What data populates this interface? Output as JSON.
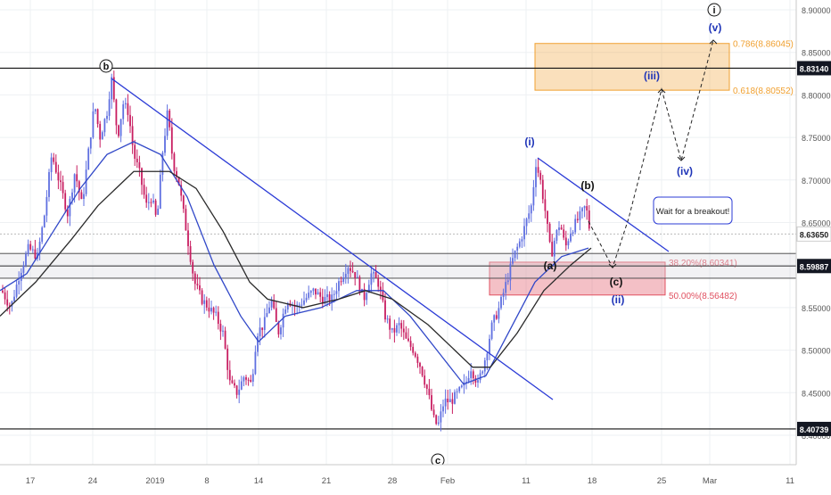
{
  "chart_data": {
    "type": "candlestick",
    "y_axis": {
      "side": "right",
      "ticks": [
        "8.40000",
        "8.45000",
        "8.50000",
        "8.55000",
        "8.60000",
        "8.65000",
        "8.70000",
        "8.75000",
        "8.80000",
        "8.85000",
        "8.90000"
      ]
    },
    "x_axis": {
      "tick_labels": [
        "17",
        "24",
        "2019",
        "8",
        "14",
        "21",
        "28",
        "Feb",
        "11",
        "18",
        "25",
        "Mar",
        "11"
      ]
    },
    "price_levels": [
      {
        "label": "8.83140",
        "value": 8.8314,
        "style": "dark"
      },
      {
        "label": "8.63650",
        "value": 8.6365,
        "style": "gray"
      },
      {
        "label": "8.59887",
        "value": 8.59887,
        "style": "dark"
      },
      {
        "label": "8.40739",
        "value": 8.40739,
        "style": "dark"
      }
    ],
    "fib_zones": [
      {
        "top_label": "0.786(8.86045)",
        "top": 8.86045,
        "bottom_label": "0.618(8.80552)",
        "bottom": 8.80552,
        "color": "#f0a030"
      },
      {
        "top_label": "38.20%(8.60341)",
        "top": 8.60341,
        "bottom_label": "50.00%(8.56482)",
        "bottom": 8.56482,
        "color": "#e05060"
      }
    ],
    "wave_labels": [
      {
        "text": "b",
        "circled": true,
        "color": "#111111"
      },
      {
        "text": "c",
        "circled": true,
        "color": "#111111"
      },
      {
        "text": "i",
        "circled": true,
        "color": "#111111"
      },
      {
        "text": "(i)",
        "color": "#1f35b8"
      },
      {
        "text": "(ii)",
        "color": "#1f35b8"
      },
      {
        "text": "(iii)",
        "color": "#1f35b8"
      },
      {
        "text": "(iv)",
        "color": "#1f35b8"
      },
      {
        "text": "(v)",
        "color": "#1f35b8"
      },
      {
        "text": "(a)",
        "color": "#111111"
      },
      {
        "text": "(b)",
        "color": "#111111"
      },
      {
        "text": "(c)",
        "color": "#111111"
      }
    ],
    "callout": "Wait for a breakout!",
    "colors": {
      "up": "#5f6fe0",
      "down": "#c81d60",
      "trendline": "#2b3bd6",
      "ma_fast": "#3148c8",
      "ma_slow": "#2a2a2a"
    }
  }
}
